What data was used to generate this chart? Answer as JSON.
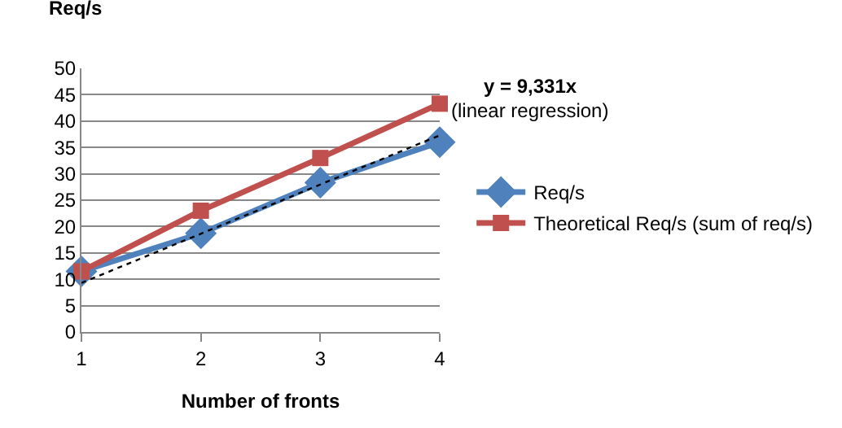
{
  "chart_data": {
    "type": "line",
    "xlabel": "Number of fronts",
    "ylabel": "Req/s",
    "x": [
      1,
      2,
      3,
      4
    ],
    "xlim": [
      1,
      4
    ],
    "xticks": [
      1,
      2,
      3,
      4
    ],
    "ylim": [
      0,
      50
    ],
    "yticks": [
      0,
      5,
      10,
      15,
      20,
      25,
      30,
      35,
      40,
      45,
      50
    ],
    "series": [
      {
        "name": "Req/s",
        "color": "#4f81bd",
        "values": [
          11.5,
          18.7,
          28.3,
          36.0
        ],
        "marker": "diamond"
      },
      {
        "name": "Theoretical Req/s (sum of req/s)",
        "color": "#c0504d",
        "values": [
          11.5,
          23.0,
          33.0,
          43.3
        ],
        "marker": "square"
      },
      {
        "color": "#000000",
        "x": [
          1,
          4
        ],
        "values": [
          9.3,
          37.3
        ],
        "marker": "none",
        "line_style": "dotted"
      }
    ],
    "annotations": [
      "y = 9,331x",
      "(linear regression)"
    ],
    "grid": "y",
    "legend": "right"
  }
}
